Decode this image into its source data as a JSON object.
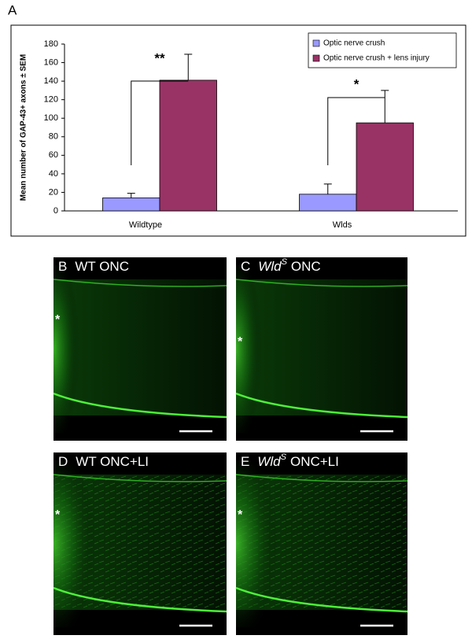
{
  "figure_label": "A",
  "chart_data": {
    "type": "bar",
    "y_label": "Mean number of GAP-43+ axons ± SEM",
    "categories": [
      "Wildtype",
      "Wlds"
    ],
    "series": [
      {
        "name": "Optic nerve crush",
        "color": "#9999ff",
        "values": [
          14,
          18
        ],
        "errors": [
          5,
          11
        ]
      },
      {
        "name": "Optic nerve crush + lens injury",
        "color": "#993366",
        "values": [
          141,
          95
        ],
        "errors": [
          28,
          35
        ]
      }
    ],
    "ylim": [
      0,
      180
    ],
    "yticks": [
      0,
      20,
      40,
      60,
      80,
      100,
      120,
      140,
      160,
      180
    ],
    "legend": "upper right",
    "annotations": [
      "**",
      "*"
    ]
  },
  "panels": [
    {
      "letter": "B",
      "label": "WT ONC",
      "marker": "*"
    },
    {
      "letter": "C",
      "genotype": "Wld",
      "superscript": "S",
      "label": "ONC",
      "marker": "*"
    },
    {
      "letter": "D",
      "label": "WT ONC+LI",
      "marker": "*"
    },
    {
      "letter": "E",
      "genotype": "Wld",
      "superscript": "S",
      "label": "ONC+LI",
      "marker": "*"
    }
  ]
}
